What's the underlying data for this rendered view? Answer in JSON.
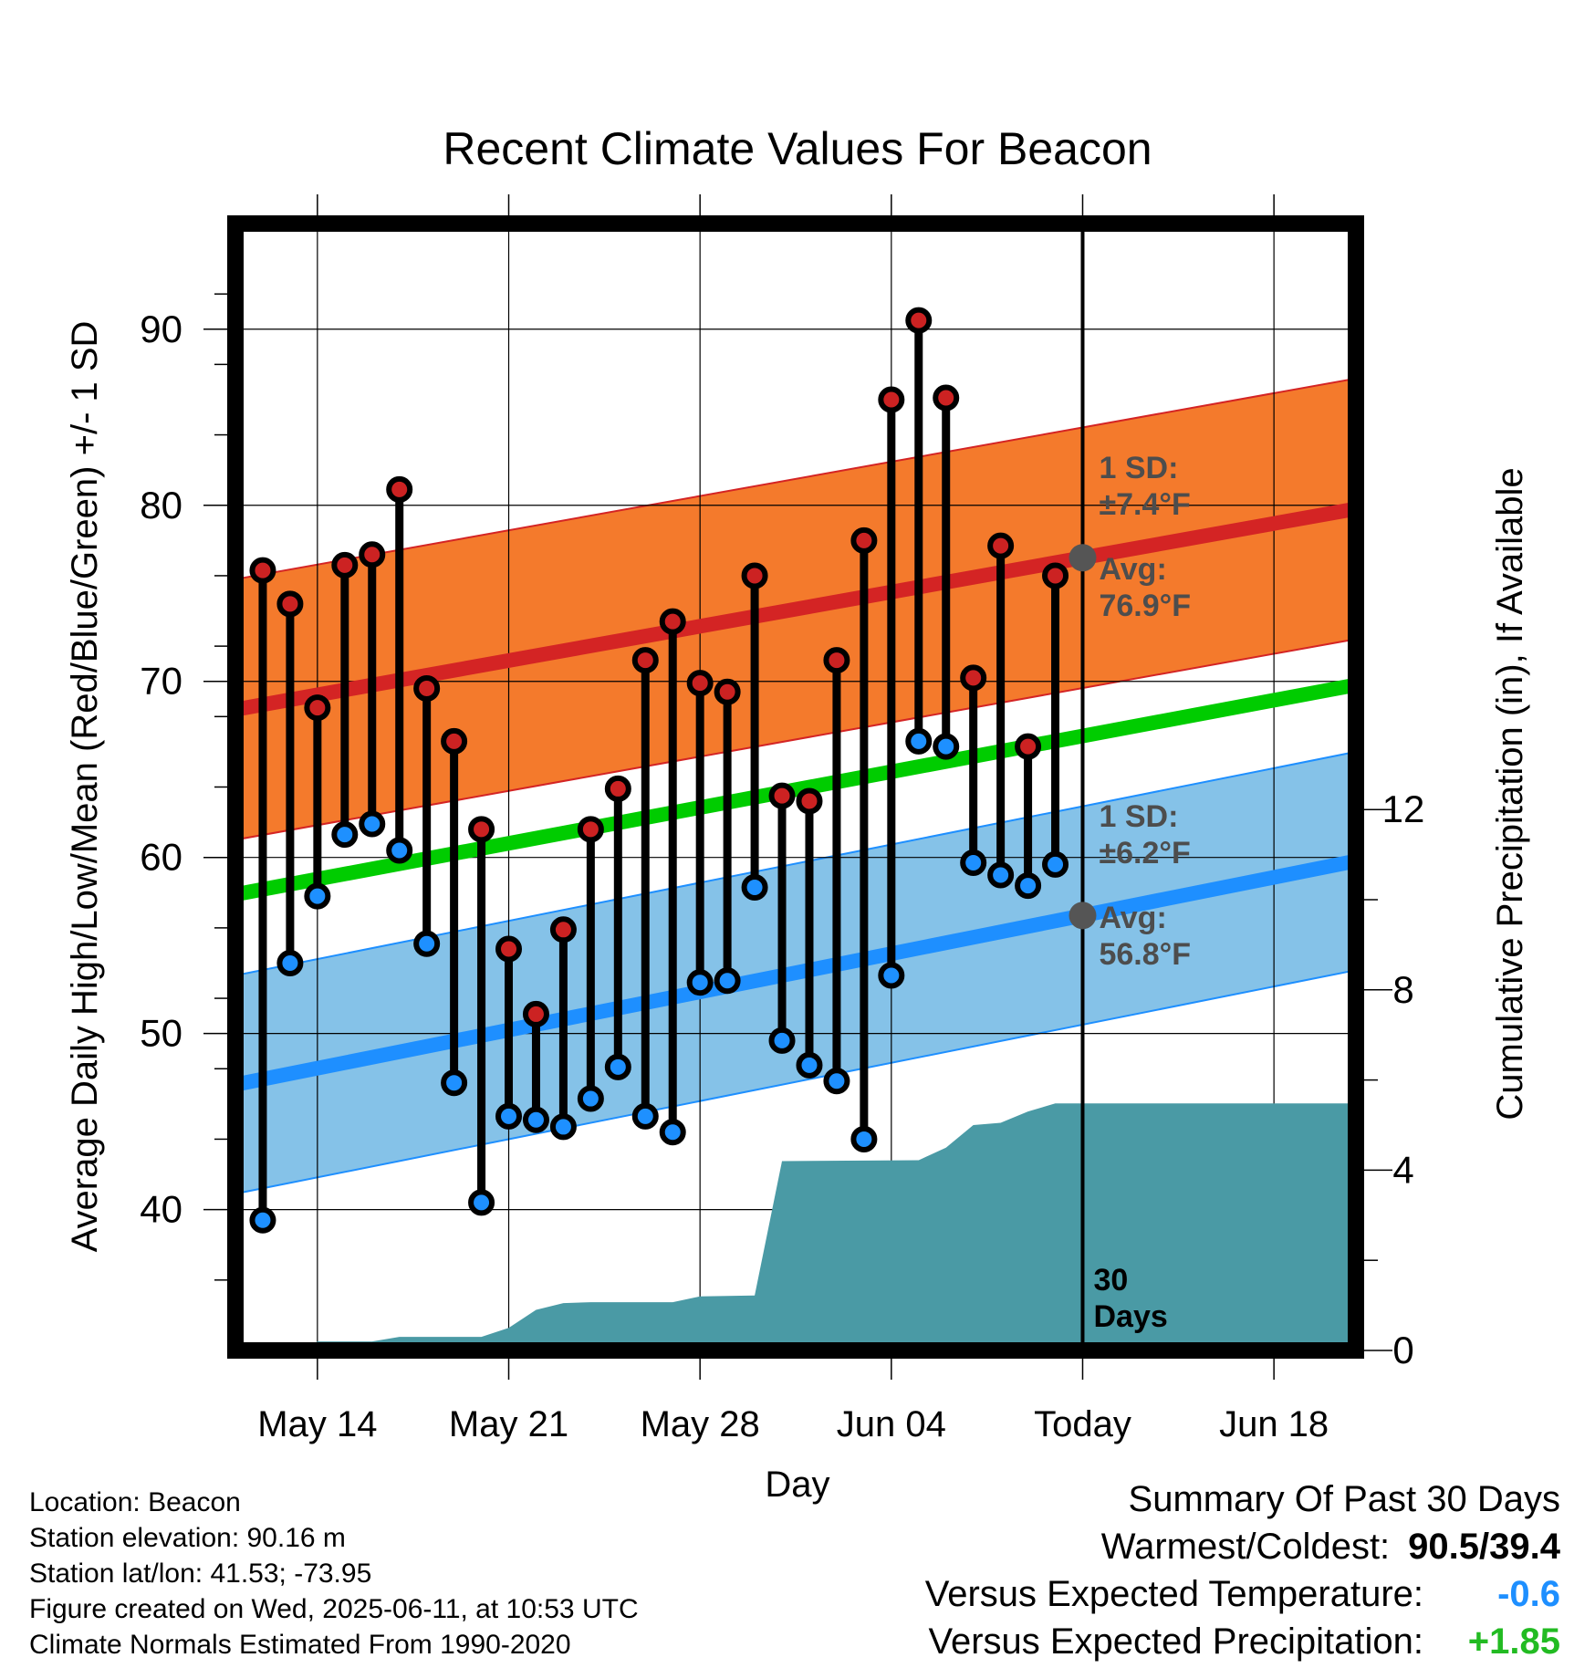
{
  "chart_data": {
    "type": "line",
    "title": "Recent Climate Values For Beacon",
    "xlabel": "Day",
    "ylabel_left": "Average Daily High/Low/Mean (Red/Blue/Green) +/- 1 SD",
    "ylabel_right": "Cumulative Precipitation (in), If Available",
    "x_ticks": [
      "May 14",
      "May 21",
      "May 28",
      "Jun 04",
      "Today",
      "Jun 18"
    ],
    "y_left_ticks": [
      "40",
      "50",
      "60",
      "70",
      "80",
      "90"
    ],
    "y_right_ticks": [
      "0",
      "4",
      "8",
      "12"
    ],
    "ylim_left": [
      32,
      96
    ],
    "ylim_right": [
      0,
      25
    ],
    "x_range": [
      "2025-05-11",
      "2025-06-21"
    ],
    "grid": true,
    "highs": [
      {
        "date": "2025-05-12",
        "value": 76.3
      },
      {
        "date": "2025-05-13",
        "value": 74.4
      },
      {
        "date": "2025-05-14",
        "value": 68.5
      },
      {
        "date": "2025-05-15",
        "value": 76.6
      },
      {
        "date": "2025-05-16",
        "value": 77.2
      },
      {
        "date": "2025-05-17",
        "value": 80.9
      },
      {
        "date": "2025-05-18",
        "value": 69.6
      },
      {
        "date": "2025-05-19",
        "value": 66.6
      },
      {
        "date": "2025-05-20",
        "value": 61.6
      },
      {
        "date": "2025-05-21",
        "value": 54.8
      },
      {
        "date": "2025-05-22",
        "value": 51.1
      },
      {
        "date": "2025-05-23",
        "value": 55.9
      },
      {
        "date": "2025-05-24",
        "value": 61.6
      },
      {
        "date": "2025-05-25",
        "value": 63.9
      },
      {
        "date": "2025-05-26",
        "value": 71.2
      },
      {
        "date": "2025-05-27",
        "value": 73.4
      },
      {
        "date": "2025-05-28",
        "value": 69.9
      },
      {
        "date": "2025-05-29",
        "value": 69.4
      },
      {
        "date": "2025-05-30",
        "value": 76.0
      },
      {
        "date": "2025-05-31",
        "value": 63.5
      },
      {
        "date": "2025-06-01",
        "value": 63.2
      },
      {
        "date": "2025-06-02",
        "value": 71.2
      },
      {
        "date": "2025-06-03",
        "value": 78.0
      },
      {
        "date": "2025-06-04",
        "value": 86.0
      },
      {
        "date": "2025-06-05",
        "value": 90.5
      },
      {
        "date": "2025-06-06",
        "value": 86.1
      },
      {
        "date": "2025-06-07",
        "value": 70.2
      },
      {
        "date": "2025-06-08",
        "value": 77.7
      },
      {
        "date": "2025-06-09",
        "value": 66.3
      },
      {
        "date": "2025-06-10",
        "value": 76.0
      }
    ],
    "lows": [
      {
        "date": "2025-05-12",
        "value": 39.4
      },
      {
        "date": "2025-05-13",
        "value": 54.0
      },
      {
        "date": "2025-05-14",
        "value": 57.8
      },
      {
        "date": "2025-05-15",
        "value": 61.3
      },
      {
        "date": "2025-05-16",
        "value": 61.9
      },
      {
        "date": "2025-05-17",
        "value": 60.4
      },
      {
        "date": "2025-05-18",
        "value": 55.1
      },
      {
        "date": "2025-05-19",
        "value": 47.2
      },
      {
        "date": "2025-05-20",
        "value": 40.4
      },
      {
        "date": "2025-05-21",
        "value": 45.3
      },
      {
        "date": "2025-05-22",
        "value": 45.1
      },
      {
        "date": "2025-05-23",
        "value": 44.7
      },
      {
        "date": "2025-05-24",
        "value": 46.3
      },
      {
        "date": "2025-05-25",
        "value": 48.1
      },
      {
        "date": "2025-05-26",
        "value": 45.3
      },
      {
        "date": "2025-05-27",
        "value": 44.4
      },
      {
        "date": "2025-05-28",
        "value": 52.9
      },
      {
        "date": "2025-05-29",
        "value": 53.0
      },
      {
        "date": "2025-05-30",
        "value": 58.3
      },
      {
        "date": "2025-05-31",
        "value": 49.6
      },
      {
        "date": "2025-06-01",
        "value": 48.2
      },
      {
        "date": "2025-06-02",
        "value": 47.3
      },
      {
        "date": "2025-06-03",
        "value": 44.0
      },
      {
        "date": "2025-06-04",
        "value": 53.3
      },
      {
        "date": "2025-06-05",
        "value": 66.6
      },
      {
        "date": "2025-06-06",
        "value": 66.3
      },
      {
        "date": "2025-06-07",
        "value": 59.7
      },
      {
        "date": "2025-06-08",
        "value": 59.0
      },
      {
        "date": "2025-06-09",
        "value": 58.4
      },
      {
        "date": "2025-06-10",
        "value": 59.6
      }
    ],
    "normal_high": {
      "start": 68.4,
      "end": 79.8,
      "sd": 7.4
    },
    "normal_low": {
      "start": 47.1,
      "end": 59.8,
      "sd": 6.2
    },
    "normal_mean": {
      "start": 57.9,
      "end": 69.8
    },
    "precipitation": [
      {
        "date": "2025-05-11",
        "value": 0.0
      },
      {
        "date": "2025-05-13",
        "value": 0.0
      },
      {
        "date": "2025-05-13.5",
        "value": 0.0
      },
      {
        "date": "2025-05-14",
        "value": 0.2
      },
      {
        "date": "2025-05-16",
        "value": 0.2
      },
      {
        "date": "2025-05-17",
        "value": 0.3
      },
      {
        "date": "2025-05-20",
        "value": 0.3
      },
      {
        "date": "2025-05-21",
        "value": 0.5
      },
      {
        "date": "2025-05-22",
        "value": 0.9
      },
      {
        "date": "2025-05-23",
        "value": 1.05
      },
      {
        "date": "2025-05-24",
        "value": 1.07
      },
      {
        "date": "2025-05-27",
        "value": 1.07
      },
      {
        "date": "2025-05-28",
        "value": 1.2
      },
      {
        "date": "2025-05-30",
        "value": 1.22
      },
      {
        "date": "2025-05-31",
        "value": 4.2
      },
      {
        "date": "2025-06-05",
        "value": 4.22
      },
      {
        "date": "2025-06-06",
        "value": 4.5
      },
      {
        "date": "2025-06-07",
        "value": 5.0
      },
      {
        "date": "2025-06-08",
        "value": 5.05
      },
      {
        "date": "2025-06-09",
        "value": 5.3
      },
      {
        "date": "2025-06-10",
        "value": 5.48
      },
      {
        "date": "2025-06-21",
        "value": 5.48
      }
    ],
    "today": "2025-06-11",
    "colors": {
      "high_marker": "#cc2222",
      "low_marker": "#1e90ff",
      "high_band": "#f47a2c",
      "high_line": "#d42424",
      "low_band": "#85c2e8",
      "low_line": "#1e8fff",
      "mean_line": "#00cc00",
      "precip": "#4a9aa5",
      "avg_marker": "#555555",
      "annotation": "#4d4d4d"
    },
    "annotations": {
      "high_sd": [
        "1 SD:",
        "±7.4°F"
      ],
      "high_avg": [
        "Avg:",
        "76.9°F"
      ],
      "low_sd": [
        "1 SD:",
        "±6.2°F"
      ],
      "low_avg": [
        "Avg:",
        "56.8°F"
      ],
      "days": [
        "30",
        "Days"
      ]
    }
  },
  "info": {
    "location": "Location: Beacon",
    "elevation": "Station elevation: 90.16 m",
    "latlon": "Station lat/lon: 41.53; -73.95",
    "created": "Figure created on Wed, 2025-06-11, at 10:53 UTC",
    "normals": "Climate Normals Estimated From 1990-2020"
  },
  "summary": {
    "title": "Summary Of Past 30 Days",
    "warmest_label": "Warmest/Coldest:",
    "warmest_value": "90.5/39.4",
    "temp_label": "Versus Expected Temperature:",
    "temp_value": "-0.6",
    "temp_color": "#1e8fff",
    "precip_label": "Versus Expected Precipitation:",
    "precip_value": "+1.85",
    "precip_color": "#22bb22"
  }
}
